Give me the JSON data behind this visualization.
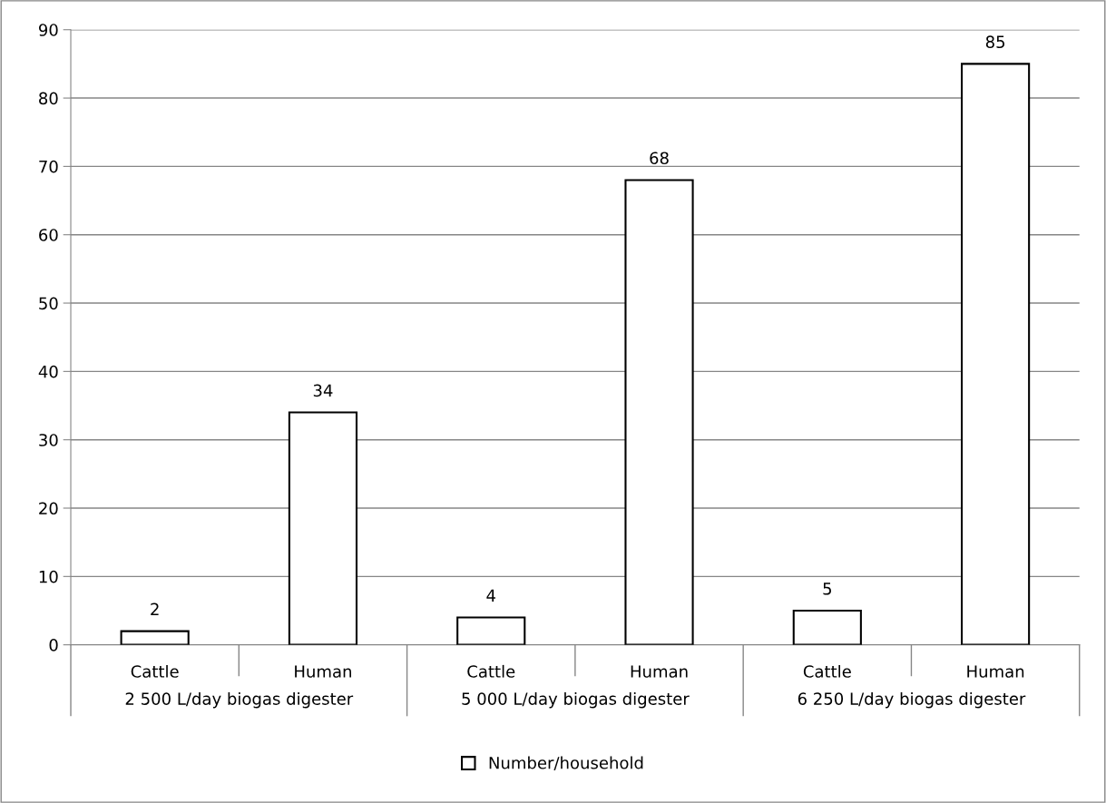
{
  "chart_data": {
    "type": "bar",
    "categories": [
      "Cattle",
      "Human",
      "Cattle",
      "Human",
      "Cattle",
      "Human"
    ],
    "series": [
      {
        "name": "Number/household",
        "color": "#ffffff",
        "values": [
          2,
          34,
          4,
          68,
          5,
          85
        ]
      }
    ],
    "annotations": [
      "2 500 L/day biogas digester",
      "5 000 L/day biogas digester",
      "6 250 L/day biogas digester"
    ],
    "ylim": [
      0,
      90
    ],
    "yticks": [
      0,
      10,
      20,
      30,
      40,
      50,
      60,
      70,
      80,
      90
    ],
    "grid": "y",
    "legend": "bottom",
    "data_labels": true
  }
}
